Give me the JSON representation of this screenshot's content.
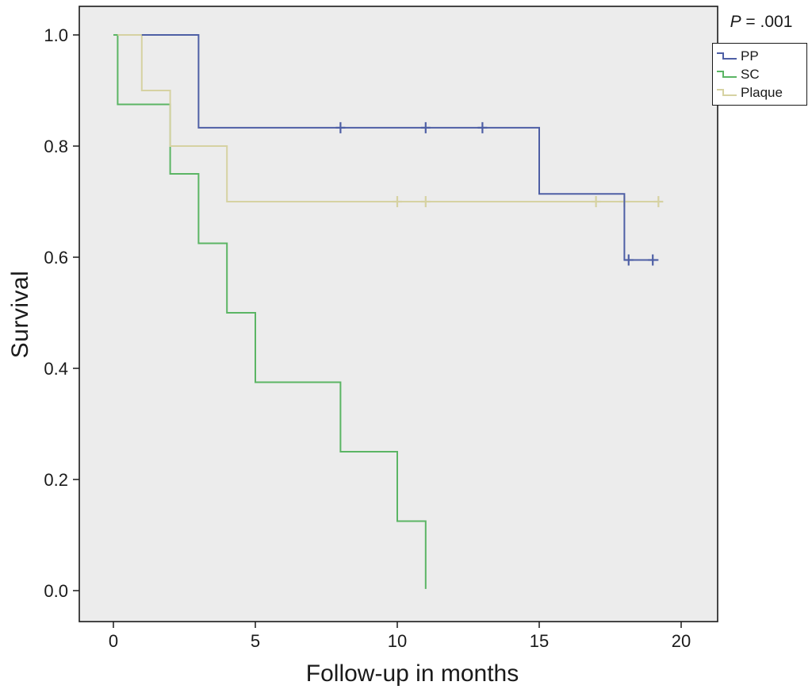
{
  "figure": {
    "background": "#ffffff",
    "text_color": "#1a1a1a",
    "frame_color": "#1a1a1a"
  },
  "legend": {
    "p_value_full": "P = .001",
    "p_value_italic": "P",
    "p_value_rest": " = .001"
  },
  "chart_data": {
    "type": "line",
    "subtype": "kaplan-meier-step",
    "title": "",
    "xlabel": "Follow-up in months",
    "ylabel": "Survival",
    "xlim": [
      -1.2,
      21.3
    ],
    "ylim": [
      -0.056,
      1.051
    ],
    "xticks": [
      0,
      5,
      10,
      15,
      20
    ],
    "xtick_labels": [
      "0",
      "5",
      "10",
      "15",
      "20"
    ],
    "yticks": [
      0.0,
      0.2,
      0.4,
      0.6,
      0.8,
      1.0
    ],
    "ytick_labels": [
      "0.0",
      "0.2",
      "0.4",
      "0.6",
      "0.8",
      "1.0"
    ],
    "grid": false,
    "plot_bg": "#ececec",
    "legend_position": "top-right-outside",
    "censor_marker": "plus",
    "series": [
      {
        "name": "PP",
        "color": "#4e5fa5",
        "points": [
          [
            1,
            1.0
          ],
          [
            3,
            1.0
          ],
          [
            3,
            0.833
          ],
          [
            15,
            0.833
          ],
          [
            15,
            0.714
          ],
          [
            18,
            0.714
          ],
          [
            18,
            0.595
          ],
          [
            19.2,
            0.595
          ]
        ],
        "censored": [
          [
            8,
            0.833
          ],
          [
            11,
            0.833
          ],
          [
            13,
            0.833
          ],
          [
            18.15,
            0.595
          ],
          [
            19,
            0.595
          ]
        ]
      },
      {
        "name": "SC",
        "color": "#5bb564",
        "points": [
          [
            0,
            1.0
          ],
          [
            0.15,
            1.0
          ],
          [
            0.15,
            0.875
          ],
          [
            2,
            0.875
          ],
          [
            2,
            0.75
          ],
          [
            3,
            0.75
          ],
          [
            3,
            0.625
          ],
          [
            4,
            0.625
          ],
          [
            4,
            0.5
          ],
          [
            5,
            0.5
          ],
          [
            5,
            0.375
          ],
          [
            8,
            0.375
          ],
          [
            8,
            0.25
          ],
          [
            10,
            0.25
          ],
          [
            10,
            0.125
          ],
          [
            11,
            0.125
          ],
          [
            11,
            0.003
          ]
        ],
        "censored": []
      },
      {
        "name": "Plaque",
        "color": "#d6d2a2",
        "points": [
          [
            0.15,
            1.0
          ],
          [
            1,
            1.0
          ],
          [
            1,
            0.9
          ],
          [
            2,
            0.9
          ],
          [
            2,
            0.8
          ],
          [
            4,
            0.8
          ],
          [
            4,
            0.7
          ],
          [
            19.35,
            0.7
          ]
        ],
        "censored": [
          [
            10,
            0.7
          ],
          [
            11,
            0.7
          ],
          [
            17,
            0.7
          ],
          [
            18,
            0.7
          ],
          [
            19.2,
            0.7
          ]
        ]
      }
    ]
  }
}
